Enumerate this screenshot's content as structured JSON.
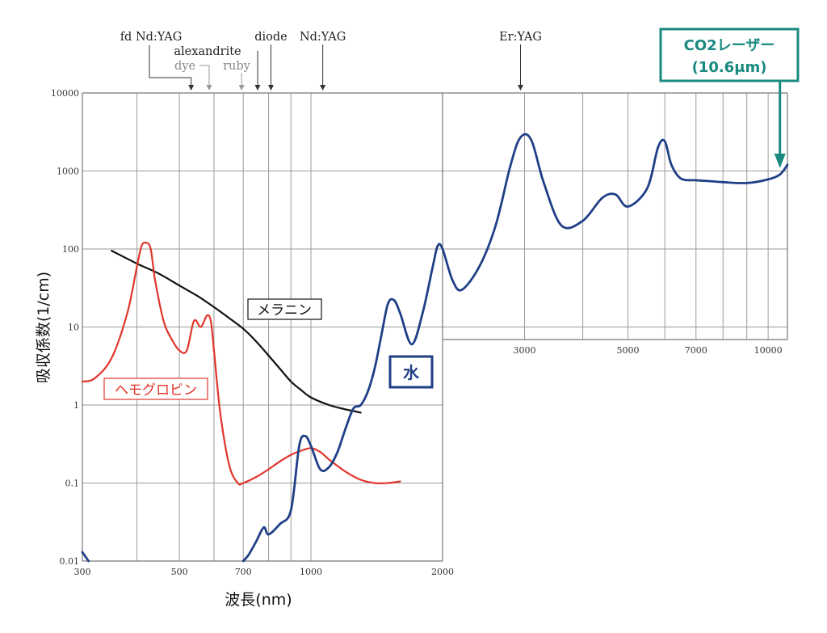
{
  "chart_data": {
    "type": "line",
    "xlabel": "波長(nm)",
    "ylabel": "吸収係数(1/cm)",
    "xscale": "log",
    "yscale": "log",
    "left_panel": {
      "xlim": [
        300,
        2000
      ],
      "x_ticks": [
        "300",
        "500",
        "700",
        "1000",
        "2000"
      ],
      "x_tick_values": [
        300,
        500,
        700,
        1000,
        2000
      ]
    },
    "right_panel": {
      "xlim": [
        2000,
        11000
      ],
      "x_ticks": [
        "3000",
        "5000",
        "7000",
        "10000"
      ],
      "x_tick_values": [
        3000,
        5000,
        7000,
        10000
      ]
    },
    "ylim": [
      0.01,
      10000
    ],
    "y_ticks": [
      "10000",
      "1000",
      "100",
      "10",
      "1",
      "0.1",
      "0.01"
    ],
    "y_tick_values": [
      10000,
      1000,
      100,
      10,
      1,
      0.1,
      0.01
    ],
    "grid": true,
    "laser_labels": [
      {
        "text": "fd Nd:YAG",
        "x": 532,
        "row": 1,
        "color": "#222222"
      },
      {
        "text": "alexandrite",
        "x": 755,
        "row": 2,
        "color": "#222222"
      },
      {
        "text": "dye",
        "x": 585,
        "row": 3,
        "color": "#888888"
      },
      {
        "text": "ruby",
        "x": 694,
        "row": 3,
        "color": "#888888"
      },
      {
        "text": "diode",
        "x": 810,
        "row": 1,
        "color": "#222222"
      },
      {
        "text": "Nd:YAG",
        "x": 1064,
        "row": 1,
        "color": "#222222"
      },
      {
        "text": "Er:YAG",
        "x": 2940,
        "row": 1,
        "color": "#222222"
      }
    ],
    "callout": {
      "line1": "CO2レーザー",
      "line2": "(10.6μm)",
      "x": 10600
    },
    "series": [
      {
        "name": "メラニン",
        "color": "#111111",
        "panel": "left",
        "x": [
          350,
          400,
          450,
          500,
          550,
          600,
          650,
          700,
          750,
          800,
          850,
          900,
          950,
          1000,
          1100,
          1200,
          1300
        ],
        "y": [
          95,
          65,
          48,
          34,
          25,
          18,
          13,
          9.5,
          6.5,
          4.3,
          2.9,
          2.0,
          1.55,
          1.25,
          1.0,
          0.88,
          0.8
        ]
      },
      {
        "name": "ヘモグロビン",
        "color": "#e0352b",
        "panel": "left",
        "x": [
          300,
          320,
          350,
          380,
          400,
          410,
          420,
          430,
          440,
          460,
          480,
          500,
          520,
          540,
          560,
          578,
          590,
          600,
          620,
          650,
          680,
          700,
          750,
          800,
          850,
          900,
          950,
          1000,
          1050,
          1100,
          1200,
          1300,
          1400,
          1500,
          1600
        ],
        "y": [
          2.0,
          2.2,
          4,
          15,
          60,
          110,
          120,
          100,
          40,
          12,
          7,
          5,
          5,
          12,
          10,
          14,
          12,
          5,
          0.8,
          0.17,
          0.1,
          0.1,
          0.12,
          0.15,
          0.19,
          0.23,
          0.26,
          0.28,
          0.25,
          0.2,
          0.14,
          0.11,
          0.1,
          0.1,
          0.105
        ]
      },
      {
        "name": "水",
        "color": "#1f3f86",
        "panel": "both",
        "x": [
          300,
          310,
          700,
          720,
          750,
          780,
          800,
          850,
          900,
          940,
          970,
          1000,
          1050,
          1100,
          1150,
          1200,
          1250,
          1300,
          1350,
          1400,
          1450,
          1500,
          1550,
          1600,
          1700,
          1800,
          1900,
          1950,
          2000,
          2100,
          2200,
          2400,
          2600,
          2800,
          2940,
          3100,
          3300,
          3600,
          4000,
          4400,
          4700,
          5000,
          5500,
          5800,
          6000,
          6200,
          6500,
          7000,
          7500,
          8000,
          9000,
          10000,
          10600,
          11000
        ],
        "y": [
          0.013,
          0.01,
          0.01,
          0.012,
          0.018,
          0.027,
          0.022,
          0.03,
          0.045,
          0.3,
          0.4,
          0.3,
          0.15,
          0.16,
          0.25,
          0.5,
          0.9,
          1.0,
          1.5,
          3.0,
          8,
          20,
          22,
          15,
          6,
          15,
          60,
          110,
          100,
          40,
          30,
          60,
          200,
          1200,
          2700,
          2500,
          700,
          200,
          230,
          450,
          500,
          350,
          600,
          2000,
          2400,
          1200,
          800,
          760,
          740,
          720,
          700,
          780,
          900,
          1200
        ]
      }
    ]
  }
}
